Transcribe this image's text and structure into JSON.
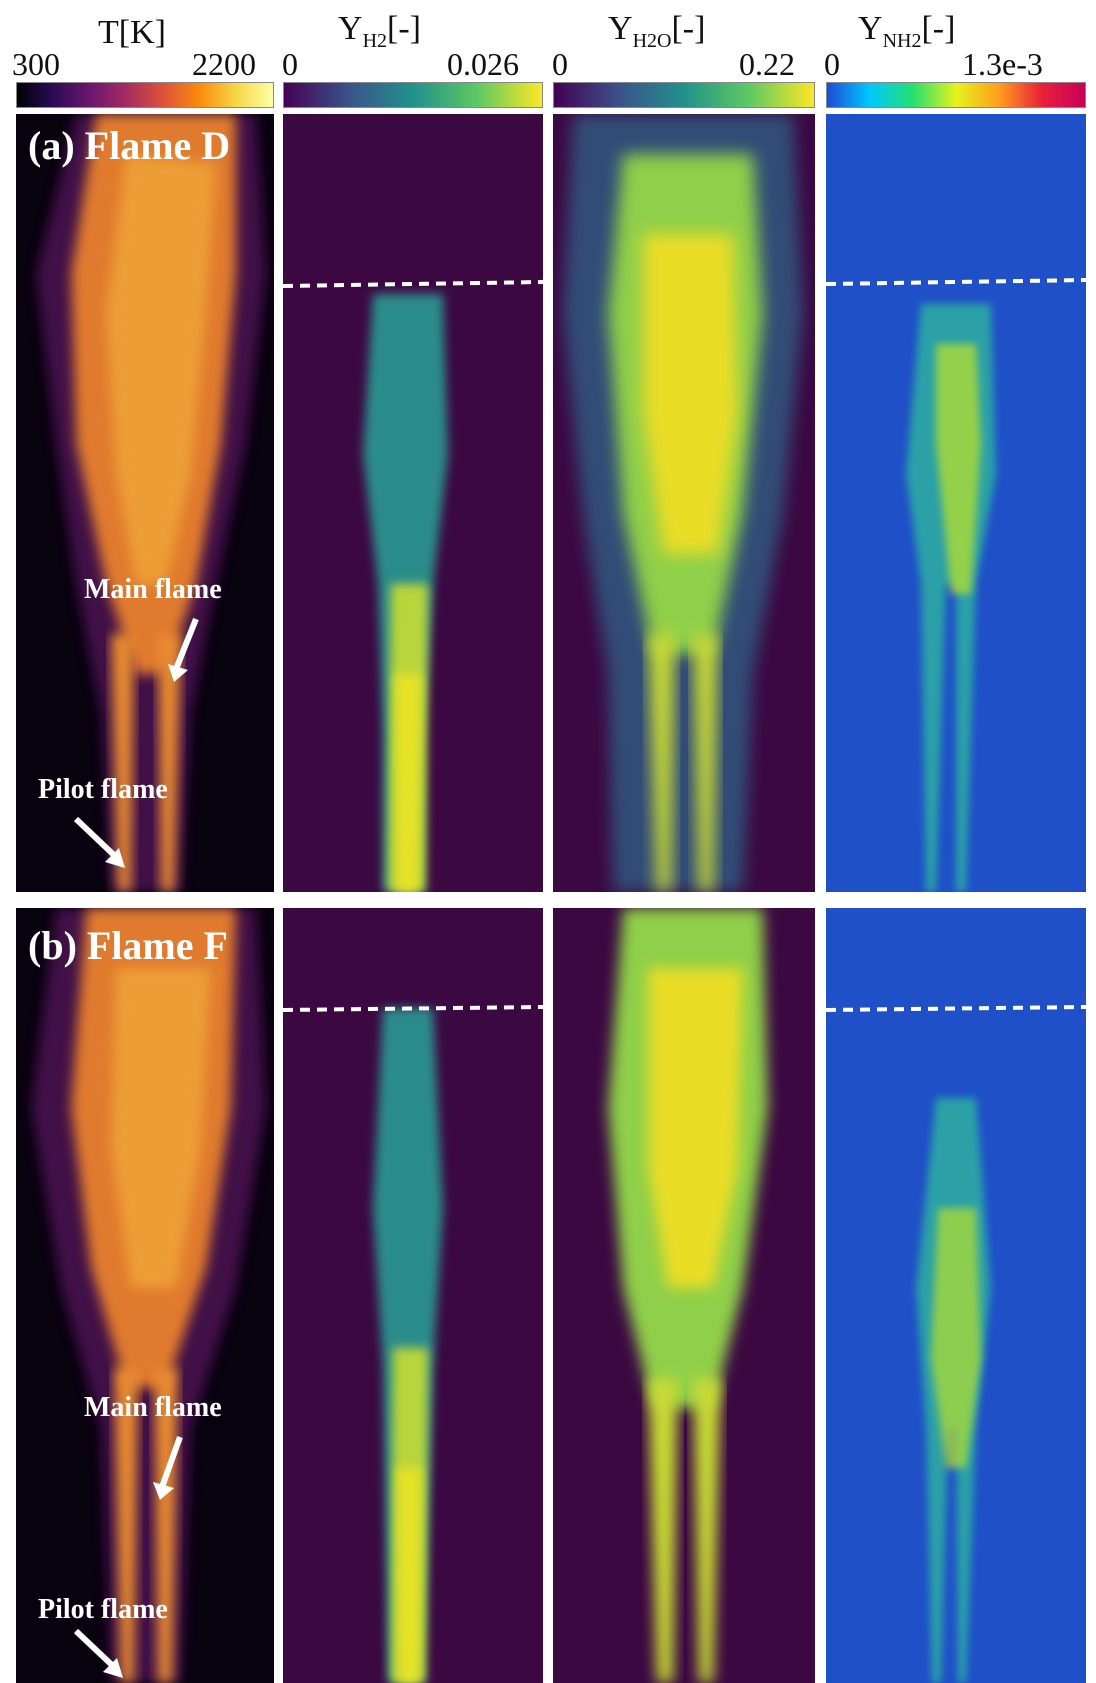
{
  "colorbars": [
    {
      "title_main": "T[K]",
      "title_sub": "",
      "title_suffix": "",
      "min": "300",
      "max": "2200",
      "colors": [
        "#000004",
        "#2b0b57",
        "#6a176e",
        "#a52c60",
        "#dd513a",
        "#f98c0a",
        "#f6d746",
        "#fcffa4"
      ]
    },
    {
      "title_main": "Y",
      "title_sub": "H2",
      "title_suffix": "[-]",
      "min": "0",
      "max": "0.026",
      "colors": [
        "#440154",
        "#3b528b",
        "#21918c",
        "#5ec962",
        "#fde725"
      ]
    },
    {
      "title_main": "Y",
      "title_sub": "H2O",
      "title_suffix": "[-]",
      "min": "0",
      "max": "0.22",
      "colors": [
        "#440154",
        "#3b528b",
        "#21918c",
        "#5ec962",
        "#fde725"
      ]
    },
    {
      "title_main": "Y",
      "title_sub": "NH2",
      "title_suffix": "[-]",
      "min": "0",
      "max": "1.3e-3",
      "colors": [
        "#1e4bd8",
        "#00c8ff",
        "#26e070",
        "#e6f21e",
        "#ff9e1e",
        "#e8203a",
        "#c8005a"
      ]
    }
  ],
  "rows": [
    {
      "label": "(a) Flame D",
      "main_flame": "Main flame",
      "pilot_flame": "Pilot flame"
    },
    {
      "label": "(b) Flame F",
      "main_flame": "Main flame",
      "pilot_flame": "Pilot flame"
    }
  ],
  "panel_backgrounds": {
    "temperature": "#08020f",
    "h2": "#3b0842",
    "h2o": "#3b0842",
    "nh2": "#1f50c8"
  }
}
